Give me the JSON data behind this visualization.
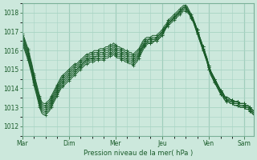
{
  "title": "",
  "xlabel": "Pression niveau de la mer( hPa )",
  "background_color": "#cce8dc",
  "grid_color": "#a8d4c4",
  "line_color": "#1a5c2a",
  "ylim": [
    1011.5,
    1018.5
  ],
  "xlim": [
    0,
    120
  ],
  "day_labels": [
    "Mar",
    "Dim",
    "Mer",
    "Jeu",
    "Ven",
    "Sam"
  ],
  "day_positions": [
    0,
    24,
    48,
    72,
    96,
    114
  ],
  "yticks": [
    1012,
    1013,
    1014,
    1015,
    1016,
    1017,
    1018
  ],
  "n_points": 120,
  "series": [
    [
      1016.6,
      1016.4,
      1016.1,
      1015.8,
      1015.4,
      1015.0,
      1014.5,
      1014.1,
      1013.7,
      1013.3,
      1013.0,
      1012.9,
      1012.9,
      1013.0,
      1013.1,
      1013.3,
      1013.5,
      1013.7,
      1013.9,
      1014.1,
      1014.3,
      1014.4,
      1014.5,
      1014.6,
      1014.7,
      1014.8,
      1014.9,
      1015.0,
      1015.0,
      1015.1,
      1015.2,
      1015.3,
      1015.4,
      1015.5,
      1015.5,
      1015.6,
      1015.6,
      1015.7,
      1015.7,
      1015.7,
      1015.8,
      1015.8,
      1015.8,
      1015.9,
      1015.9,
      1016.0,
      1016.0,
      1016.1,
      1016.0,
      1015.9,
      1015.9,
      1015.8,
      1015.8,
      1015.7,
      1015.7,
      1015.6,
      1015.6,
      1015.5,
      1015.6,
      1015.7,
      1015.8,
      1016.0,
      1016.2,
      1016.3,
      1016.4,
      1016.4,
      1016.4,
      1016.5,
      1016.5,
      1016.5,
      1016.6,
      1016.7,
      1016.8,
      1017.0,
      1017.2,
      1017.4,
      1017.5,
      1017.6,
      1017.7,
      1017.8,
      1017.9,
      1018.0,
      1018.1,
      1018.2,
      1018.2,
      1018.1,
      1018.0,
      1017.8,
      1017.6,
      1017.4,
      1017.1,
      1016.8,
      1016.5,
      1016.2,
      1015.9,
      1015.6,
      1015.2,
      1014.9,
      1014.7,
      1014.5,
      1014.3,
      1014.1,
      1013.9,
      1013.8,
      1013.6,
      1013.5,
      1013.5,
      1013.4,
      1013.4,
      1013.3,
      1013.3,
      1013.3,
      1013.2,
      1013.2,
      1013.2,
      1013.1,
      1013.1,
      1013.0,
      1012.9,
      1012.8
    ],
    [
      1016.5,
      1016.3,
      1016.0,
      1015.7,
      1015.3,
      1014.9,
      1014.4,
      1014.0,
      1013.6,
      1013.2,
      1012.9,
      1012.8,
      1012.8,
      1012.9,
      1013.0,
      1013.2,
      1013.4,
      1013.6,
      1013.8,
      1014.0,
      1014.2,
      1014.3,
      1014.4,
      1014.5,
      1014.6,
      1014.7,
      1014.8,
      1014.9,
      1015.0,
      1015.1,
      1015.2,
      1015.3,
      1015.4,
      1015.5,
      1015.5,
      1015.6,
      1015.6,
      1015.6,
      1015.7,
      1015.7,
      1015.7,
      1015.7,
      1015.7,
      1015.8,
      1015.8,
      1015.9,
      1015.9,
      1016.0,
      1015.9,
      1015.8,
      1015.8,
      1015.7,
      1015.7,
      1015.6,
      1015.6,
      1015.5,
      1015.5,
      1015.4,
      1015.5,
      1015.6,
      1015.8,
      1016.0,
      1016.2,
      1016.4,
      1016.5,
      1016.6,
      1016.6,
      1016.6,
      1016.6,
      1016.7,
      1016.8,
      1016.9,
      1017.0,
      1017.2,
      1017.3,
      1017.5,
      1017.6,
      1017.7,
      1017.8,
      1017.9,
      1018.0,
      1018.1,
      1018.2,
      1018.3,
      1018.3,
      1018.2,
      1018.0,
      1017.8,
      1017.6,
      1017.3,
      1017.0,
      1016.7,
      1016.4,
      1016.1,
      1015.8,
      1015.5,
      1015.1,
      1014.8,
      1014.6,
      1014.4,
      1014.2,
      1014.0,
      1013.8,
      1013.7,
      1013.5,
      1013.4,
      1013.4,
      1013.3,
      1013.3,
      1013.2,
      1013.2,
      1013.2,
      1013.1,
      1013.1,
      1013.1,
      1013.0,
      1013.0,
      1012.9,
      1012.8,
      1012.7
    ],
    [
      1016.7,
      1016.5,
      1016.2,
      1015.9,
      1015.5,
      1015.1,
      1014.6,
      1014.2,
      1013.8,
      1013.4,
      1013.1,
      1013.0,
      1013.0,
      1013.1,
      1013.2,
      1013.4,
      1013.6,
      1013.8,
      1014.0,
      1014.2,
      1014.4,
      1014.5,
      1014.6,
      1014.7,
      1014.8,
      1014.9,
      1015.0,
      1015.1,
      1015.1,
      1015.2,
      1015.3,
      1015.4,
      1015.5,
      1015.6,
      1015.6,
      1015.7,
      1015.7,
      1015.8,
      1015.8,
      1015.8,
      1015.9,
      1015.9,
      1015.9,
      1016.0,
      1016.0,
      1016.1,
      1016.1,
      1016.2,
      1016.1,
      1016.0,
      1016.0,
      1015.9,
      1015.9,
      1015.8,
      1015.8,
      1015.7,
      1015.7,
      1015.6,
      1015.7,
      1015.8,
      1015.9,
      1016.1,
      1016.3,
      1016.4,
      1016.5,
      1016.5,
      1016.5,
      1016.6,
      1016.6,
      1016.6,
      1016.7,
      1016.8,
      1016.9,
      1017.1,
      1017.2,
      1017.4,
      1017.5,
      1017.6,
      1017.7,
      1017.8,
      1017.9,
      1018.0,
      1018.1,
      1018.2,
      1018.2,
      1018.1,
      1017.9,
      1017.7,
      1017.5,
      1017.2,
      1016.9,
      1016.6,
      1016.3,
      1016.0,
      1015.7,
      1015.4,
      1015.0,
      1014.7,
      1014.5,
      1014.3,
      1014.1,
      1013.9,
      1013.7,
      1013.6,
      1013.4,
      1013.3,
      1013.3,
      1013.2,
      1013.2,
      1013.1,
      1013.1,
      1013.1,
      1013.0,
      1013.0,
      1013.0,
      1012.9,
      1012.9,
      1012.8,
      1012.7,
      1012.6
    ],
    [
      1016.4,
      1016.2,
      1015.9,
      1015.6,
      1015.2,
      1014.8,
      1014.3,
      1013.9,
      1013.5,
      1013.1,
      1012.8,
      1012.7,
      1012.7,
      1012.8,
      1012.9,
      1013.1,
      1013.3,
      1013.5,
      1013.7,
      1013.9,
      1014.1,
      1014.2,
      1014.3,
      1014.4,
      1014.5,
      1014.6,
      1014.7,
      1014.8,
      1014.9,
      1015.0,
      1015.1,
      1015.2,
      1015.3,
      1015.4,
      1015.4,
      1015.5,
      1015.5,
      1015.5,
      1015.6,
      1015.6,
      1015.6,
      1015.6,
      1015.6,
      1015.7,
      1015.7,
      1015.8,
      1015.8,
      1015.9,
      1015.8,
      1015.7,
      1015.7,
      1015.6,
      1015.6,
      1015.5,
      1015.5,
      1015.4,
      1015.4,
      1015.3,
      1015.4,
      1015.5,
      1015.7,
      1015.9,
      1016.1,
      1016.3,
      1016.4,
      1016.5,
      1016.5,
      1016.5,
      1016.5,
      1016.6,
      1016.7,
      1016.8,
      1016.9,
      1017.1,
      1017.3,
      1017.4,
      1017.5,
      1017.6,
      1017.7,
      1017.8,
      1017.9,
      1018.0,
      1018.1,
      1018.2,
      1018.2,
      1018.1,
      1018.0,
      1017.8,
      1017.6,
      1017.4,
      1017.1,
      1016.8,
      1016.5,
      1016.2,
      1015.9,
      1015.6,
      1015.2,
      1014.9,
      1014.7,
      1014.5,
      1014.3,
      1014.1,
      1013.9,
      1013.8,
      1013.6,
      1013.5,
      1013.5,
      1013.4,
      1013.4,
      1013.3,
      1013.3,
      1013.3,
      1013.2,
      1013.2,
      1013.2,
      1013.1,
      1013.1,
      1013.0,
      1012.9,
      1012.8
    ],
    [
      1016.8,
      1016.6,
      1016.3,
      1016.0,
      1015.6,
      1015.2,
      1014.7,
      1014.3,
      1013.9,
      1013.5,
      1013.2,
      1013.1,
      1013.1,
      1013.2,
      1013.3,
      1013.5,
      1013.7,
      1013.9,
      1014.1,
      1014.3,
      1014.5,
      1014.6,
      1014.7,
      1014.8,
      1014.9,
      1015.0,
      1015.1,
      1015.2,
      1015.2,
      1015.3,
      1015.4,
      1015.5,
      1015.6,
      1015.7,
      1015.7,
      1015.8,
      1015.8,
      1015.9,
      1015.9,
      1015.9,
      1016.0,
      1016.0,
      1016.0,
      1016.1,
      1016.1,
      1016.2,
      1016.2,
      1016.3,
      1016.2,
      1016.1,
      1016.1,
      1016.0,
      1016.0,
      1015.9,
      1015.9,
      1015.8,
      1015.8,
      1015.7,
      1015.8,
      1015.9,
      1016.0,
      1016.2,
      1016.4,
      1016.5,
      1016.6,
      1016.6,
      1016.6,
      1016.7,
      1016.7,
      1016.7,
      1016.8,
      1016.9,
      1017.0,
      1017.2,
      1017.3,
      1017.5,
      1017.6,
      1017.7,
      1017.8,
      1017.9,
      1018.0,
      1018.1,
      1018.2,
      1018.3,
      1018.3,
      1018.2,
      1018.0,
      1017.8,
      1017.6,
      1017.3,
      1017.0,
      1016.7,
      1016.4,
      1016.1,
      1015.8,
      1015.5,
      1015.1,
      1014.8,
      1014.6,
      1014.4,
      1014.2,
      1014.0,
      1013.8,
      1013.7,
      1013.5,
      1013.4,
      1013.4,
      1013.3,
      1013.3,
      1013.2,
      1013.2,
      1013.2,
      1013.1,
      1013.1,
      1013.1,
      1013.0,
      1013.0,
      1012.9,
      1012.8,
      1012.7
    ],
    [
      1016.3,
      1016.1,
      1015.8,
      1015.5,
      1015.1,
      1014.7,
      1014.2,
      1013.8,
      1013.4,
      1013.0,
      1012.7,
      1012.6,
      1012.6,
      1012.7,
      1012.8,
      1013.0,
      1013.2,
      1013.4,
      1013.6,
      1013.8,
      1014.0,
      1014.1,
      1014.2,
      1014.3,
      1014.4,
      1014.5,
      1014.6,
      1014.7,
      1014.8,
      1014.9,
      1015.0,
      1015.1,
      1015.2,
      1015.3,
      1015.3,
      1015.4,
      1015.4,
      1015.4,
      1015.5,
      1015.5,
      1015.5,
      1015.5,
      1015.5,
      1015.6,
      1015.6,
      1015.7,
      1015.7,
      1015.8,
      1015.7,
      1015.6,
      1015.6,
      1015.5,
      1015.5,
      1015.4,
      1015.4,
      1015.3,
      1015.3,
      1015.2,
      1015.3,
      1015.4,
      1015.6,
      1015.8,
      1016.0,
      1016.2,
      1016.3,
      1016.4,
      1016.4,
      1016.4,
      1016.5,
      1016.5,
      1016.6,
      1016.7,
      1016.8,
      1017.0,
      1017.2,
      1017.3,
      1017.4,
      1017.5,
      1017.6,
      1017.7,
      1017.8,
      1017.9,
      1018.0,
      1018.1,
      1018.1,
      1018.0,
      1017.9,
      1017.7,
      1017.5,
      1017.2,
      1016.9,
      1016.6,
      1016.3,
      1016.0,
      1015.7,
      1015.4,
      1015.0,
      1014.7,
      1014.5,
      1014.3,
      1014.1,
      1013.9,
      1013.7,
      1013.6,
      1013.4,
      1013.3,
      1013.3,
      1013.2,
      1013.2,
      1013.1,
      1013.1,
      1013.1,
      1013.0,
      1013.0,
      1013.0,
      1012.9,
      1012.9,
      1012.8,
      1012.7,
      1012.6
    ],
    [
      1016.9,
      1016.7,
      1016.4,
      1016.1,
      1015.7,
      1015.3,
      1014.8,
      1014.4,
      1014.0,
      1013.6,
      1013.3,
      1013.2,
      1013.2,
      1013.3,
      1013.4,
      1013.6,
      1013.8,
      1014.0,
      1014.2,
      1014.4,
      1014.6,
      1014.7,
      1014.8,
      1014.9,
      1015.0,
      1015.1,
      1015.2,
      1015.3,
      1015.3,
      1015.4,
      1015.5,
      1015.6,
      1015.7,
      1015.8,
      1015.8,
      1015.9,
      1015.9,
      1016.0,
      1016.0,
      1016.0,
      1016.1,
      1016.1,
      1016.1,
      1016.2,
      1016.2,
      1016.3,
      1016.3,
      1016.4,
      1016.3,
      1016.2,
      1016.2,
      1016.1,
      1016.1,
      1016.0,
      1016.0,
      1015.9,
      1015.9,
      1015.8,
      1015.9,
      1016.0,
      1016.1,
      1016.3,
      1016.5,
      1016.6,
      1016.7,
      1016.7,
      1016.7,
      1016.8,
      1016.8,
      1016.8,
      1016.9,
      1017.0,
      1017.1,
      1017.3,
      1017.4,
      1017.6,
      1017.7,
      1017.8,
      1017.9,
      1018.0,
      1018.1,
      1018.2,
      1018.3,
      1018.4,
      1018.4,
      1018.3,
      1018.1,
      1017.9,
      1017.7,
      1017.4,
      1017.1,
      1016.8,
      1016.5,
      1016.2,
      1015.9,
      1015.6,
      1015.2,
      1014.9,
      1014.7,
      1014.5,
      1014.3,
      1014.1,
      1013.9,
      1013.8,
      1013.6,
      1013.5,
      1013.5,
      1013.4,
      1013.4,
      1013.3,
      1013.3,
      1013.3,
      1013.2,
      1013.2,
      1013.2,
      1013.1,
      1013.1,
      1013.0,
      1012.9,
      1012.8
    ]
  ]
}
